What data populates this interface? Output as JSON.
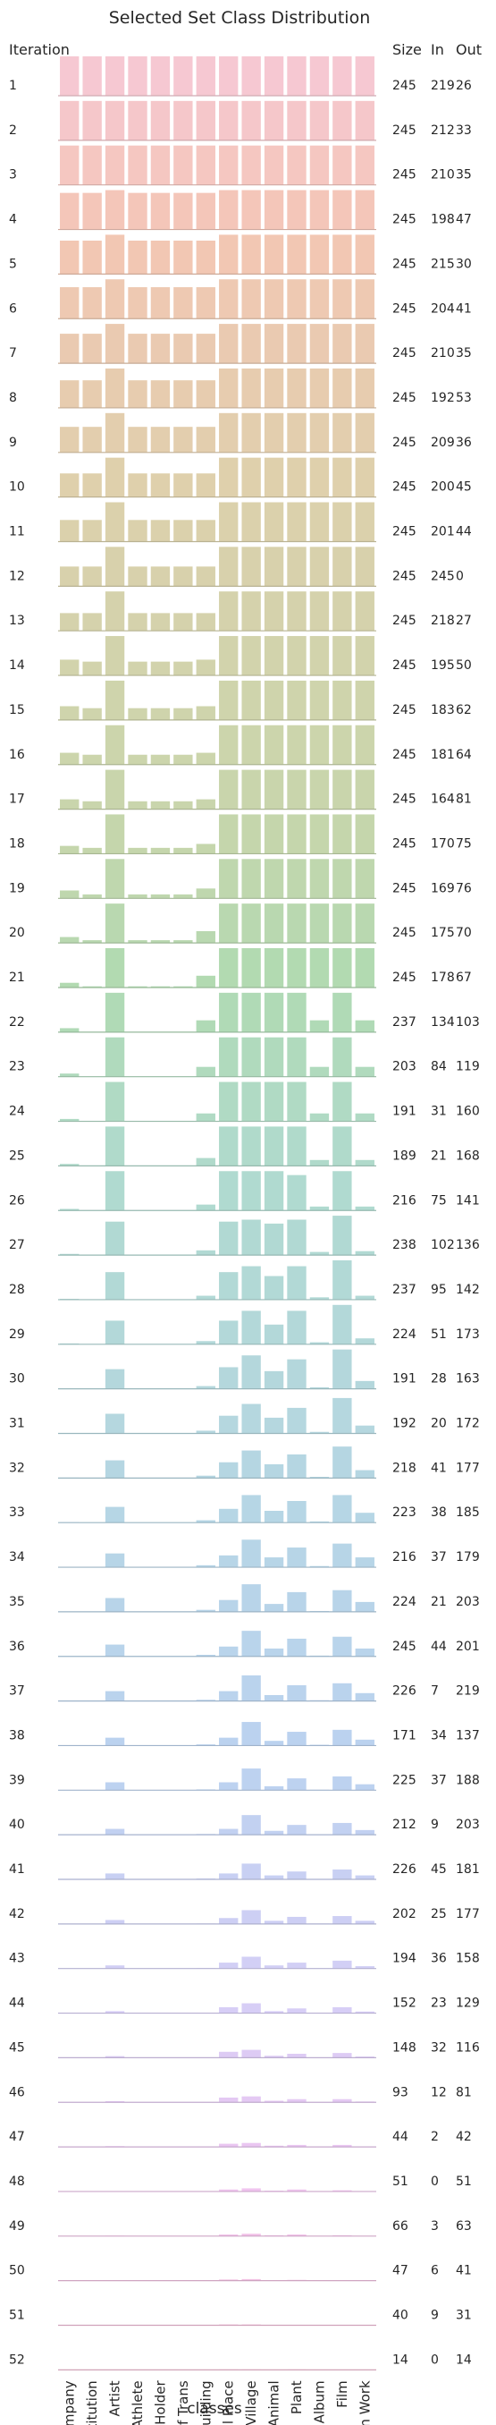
{
  "chart_data": {
    "type": "bar",
    "title": "Selected Set Class Distribution",
    "row_header": "Iteration",
    "xlabel": "classes",
    "stat_headers": [
      "Size",
      "In",
      "Out"
    ],
    "categories": [
      "Company",
      "Edu Institution",
      "Artist",
      "Athlete",
      "Office Holder",
      "Mean Of Trans",
      "Building",
      "Natural Place",
      "Village",
      "Animal",
      "Plant",
      "Album",
      "Film",
      "Written Work"
    ],
    "iterations": [
      {
        "iteration": 1,
        "size": 245,
        "in": 219,
        "out": 26,
        "values": [
          1,
          1,
          1,
          1,
          1,
          1,
          1,
          1,
          1,
          1,
          1,
          1,
          1,
          1
        ]
      },
      {
        "iteration": 2,
        "size": 245,
        "in": 212,
        "out": 33,
        "values": [
          1,
          1,
          1,
          1,
          1,
          1,
          1,
          1,
          1,
          1,
          1,
          1,
          1,
          1
        ]
      },
      {
        "iteration": 3,
        "size": 245,
        "in": 210,
        "out": 35,
        "values": [
          1,
          1,
          1,
          1,
          1,
          1,
          1,
          1,
          1,
          1,
          1,
          1,
          1,
          1
        ]
      },
      {
        "iteration": 4,
        "size": 245,
        "in": 198,
        "out": 47,
        "values": [
          0.93,
          0.93,
          1,
          0.93,
          0.93,
          0.93,
          0.93,
          1,
          1,
          1,
          1,
          1,
          1,
          1
        ]
      },
      {
        "iteration": 5,
        "size": 245,
        "in": 215,
        "out": 30,
        "values": [
          0.85,
          0.85,
          1,
          0.85,
          0.85,
          0.85,
          0.85,
          1,
          1,
          1,
          1,
          1,
          1,
          1
        ]
      },
      {
        "iteration": 6,
        "size": 245,
        "in": 204,
        "out": 41,
        "values": [
          0.8,
          0.8,
          1,
          0.8,
          0.8,
          0.8,
          0.8,
          1,
          1,
          1,
          1,
          1,
          1,
          1
        ]
      },
      {
        "iteration": 7,
        "size": 245,
        "in": 210,
        "out": 35,
        "values": [
          0.75,
          0.75,
          1,
          0.75,
          0.75,
          0.75,
          0.75,
          1,
          1,
          1,
          1,
          1,
          1,
          1
        ]
      },
      {
        "iteration": 8,
        "size": 245,
        "in": 192,
        "out": 53,
        "values": [
          0.7,
          0.7,
          1,
          0.7,
          0.7,
          0.7,
          0.7,
          1,
          1,
          1,
          1,
          1,
          1,
          1
        ]
      },
      {
        "iteration": 9,
        "size": 245,
        "in": 209,
        "out": 36,
        "values": [
          0.65,
          0.65,
          1,
          0.65,
          0.65,
          0.65,
          0.65,
          1,
          1,
          1,
          1,
          1,
          1,
          1
        ]
      },
      {
        "iteration": 10,
        "size": 245,
        "in": 200,
        "out": 45,
        "values": [
          0.6,
          0.6,
          1,
          0.6,
          0.6,
          0.6,
          0.6,
          1,
          1,
          1,
          1,
          1,
          1,
          1
        ]
      },
      {
        "iteration": 11,
        "size": 245,
        "in": 201,
        "out": 44,
        "values": [
          0.55,
          0.55,
          1,
          0.55,
          0.55,
          0.55,
          0.55,
          1,
          1,
          1,
          1,
          1,
          1,
          1
        ]
      },
      {
        "iteration": 12,
        "size": 245,
        "in": 245,
        "out": 0,
        "values": [
          0.5,
          0.5,
          1,
          0.5,
          0.5,
          0.5,
          0.5,
          1,
          1,
          1,
          1,
          1,
          1,
          1
        ]
      },
      {
        "iteration": 13,
        "size": 245,
        "in": 218,
        "out": 27,
        "values": [
          0.45,
          0.45,
          1,
          0.45,
          0.45,
          0.45,
          0.45,
          1,
          1,
          1,
          1,
          1,
          1,
          1
        ]
      },
      {
        "iteration": 14,
        "size": 245,
        "in": 195,
        "out": 50,
        "values": [
          0.4,
          0.35,
          1,
          0.35,
          0.35,
          0.35,
          0.4,
          1,
          1,
          1,
          1,
          1,
          1,
          1
        ]
      },
      {
        "iteration": 15,
        "size": 245,
        "in": 183,
        "out": 62,
        "values": [
          0.35,
          0.3,
          1,
          0.3,
          0.3,
          0.3,
          0.35,
          1,
          1,
          1,
          1,
          1,
          1,
          1
        ]
      },
      {
        "iteration": 16,
        "size": 245,
        "in": 181,
        "out": 64,
        "values": [
          0.3,
          0.25,
          1,
          0.25,
          0.25,
          0.25,
          0.3,
          1,
          1,
          1,
          1,
          1,
          1,
          1
        ]
      },
      {
        "iteration": 17,
        "size": 245,
        "in": 164,
        "out": 81,
        "values": [
          0.25,
          0.2,
          1,
          0.2,
          0.2,
          0.2,
          0.25,
          1,
          1,
          1,
          1,
          1,
          1,
          1
        ]
      },
      {
        "iteration": 18,
        "size": 245,
        "in": 170,
        "out": 75,
        "values": [
          0.2,
          0.15,
          1,
          0.15,
          0.15,
          0.15,
          0.25,
          1,
          1,
          1,
          1,
          1,
          1,
          1
        ]
      },
      {
        "iteration": 19,
        "size": 245,
        "in": 169,
        "out": 76,
        "values": [
          0.2,
          0.1,
          1,
          0.1,
          0.1,
          0.1,
          0.25,
          1,
          1,
          1,
          1,
          1,
          1,
          1
        ]
      },
      {
        "iteration": 20,
        "size": 245,
        "in": 175,
        "out": 70,
        "values": [
          0.15,
          0.07,
          1,
          0.07,
          0.07,
          0.07,
          0.3,
          1,
          1,
          1,
          1,
          1,
          1,
          1
        ]
      },
      {
        "iteration": 21,
        "size": 245,
        "in": 178,
        "out": 67,
        "values": [
          0.12,
          0.03,
          1,
          0.03,
          0.03,
          0.03,
          0.3,
          1,
          1,
          1,
          1,
          1,
          1,
          1
        ]
      },
      {
        "iteration": 22,
        "size": 237,
        "in": 134,
        "out": 103,
        "values": [
          0.1,
          0,
          1,
          0,
          0,
          0,
          0.3,
          1,
          1,
          1,
          1,
          0.3,
          1,
          0.3
        ]
      },
      {
        "iteration": 23,
        "size": 203,
        "in": 84,
        "out": 119,
        "values": [
          0.08,
          0,
          1,
          0,
          0,
          0,
          0.25,
          1,
          1,
          1,
          1,
          0.25,
          1,
          0.25
        ]
      },
      {
        "iteration": 24,
        "size": 191,
        "in": 31,
        "out": 160,
        "values": [
          0.06,
          0,
          1,
          0,
          0,
          0,
          0.2,
          1,
          1,
          1,
          1,
          0.2,
          1,
          0.2
        ]
      },
      {
        "iteration": 25,
        "size": 189,
        "in": 21,
        "out": 168,
        "values": [
          0.05,
          0,
          1,
          0,
          0,
          0,
          0.2,
          1,
          1,
          1,
          1,
          0.15,
          1,
          0.15
        ]
      },
      {
        "iteration": 26,
        "size": 216,
        "in": 75,
        "out": 141,
        "values": [
          0.04,
          0,
          1,
          0,
          0,
          0,
          0.15,
          1,
          1,
          1,
          0.9,
          0.1,
          1,
          0.1
        ]
      },
      {
        "iteration": 27,
        "size": 238,
        "in": 102,
        "out": 136,
        "values": [
          0.03,
          0,
          0.85,
          0,
          0,
          0,
          0.12,
          0.85,
          0.9,
          0.8,
          0.9,
          0.08,
          1,
          0.1
        ]
      },
      {
        "iteration": 28,
        "size": 237,
        "in": 95,
        "out": 142,
        "values": [
          0.02,
          0,
          0.7,
          0,
          0,
          0,
          0.1,
          0.7,
          0.85,
          0.6,
          0.85,
          0.06,
          1,
          0.1
        ]
      },
      {
        "iteration": 29,
        "size": 224,
        "in": 51,
        "out": 173,
        "values": [
          0.02,
          0,
          0.6,
          0,
          0,
          0,
          0.08,
          0.6,
          0.85,
          0.5,
          0.85,
          0.05,
          1,
          0.15
        ]
      },
      {
        "iteration": 30,
        "size": 191,
        "in": 28,
        "out": 163,
        "values": [
          0.01,
          0,
          0.5,
          0,
          0,
          0,
          0.07,
          0.55,
          0.85,
          0.45,
          0.75,
          0.04,
          1,
          0.2
        ]
      },
      {
        "iteration": 31,
        "size": 192,
        "in": 20,
        "out": 172,
        "values": [
          0.01,
          0,
          0.5,
          0,
          0,
          0,
          0.07,
          0.45,
          0.75,
          0.4,
          0.65,
          0.04,
          0.9,
          0.2
        ]
      },
      {
        "iteration": 32,
        "size": 218,
        "in": 41,
        "out": 177,
        "values": [
          0.01,
          0,
          0.45,
          0,
          0,
          0,
          0.06,
          0.4,
          0.7,
          0.35,
          0.6,
          0.03,
          0.8,
          0.2
        ]
      },
      {
        "iteration": 33,
        "size": 223,
        "in": 38,
        "out": 185,
        "values": [
          0.01,
          0,
          0.4,
          0,
          0,
          0,
          0.06,
          0.35,
          0.7,
          0.3,
          0.55,
          0.03,
          0.7,
          0.25
        ]
      },
      {
        "iteration": 34,
        "size": 216,
        "in": 37,
        "out": 179,
        "values": [
          0.01,
          0,
          0.35,
          0,
          0,
          0,
          0.05,
          0.3,
          0.7,
          0.25,
          0.5,
          0.03,
          0.6,
          0.25
        ]
      },
      {
        "iteration": 35,
        "size": 224,
        "in": 21,
        "out": 203,
        "values": [
          0,
          0,
          0.35,
          0,
          0,
          0,
          0.05,
          0.3,
          0.7,
          0.2,
          0.5,
          0.02,
          0.55,
          0.25
        ]
      },
      {
        "iteration": 36,
        "size": 245,
        "in": 44,
        "out": 201,
        "values": [
          0,
          0,
          0.3,
          0,
          0,
          0,
          0.04,
          0.25,
          0.65,
          0.2,
          0.45,
          0.02,
          0.5,
          0.2
        ]
      },
      {
        "iteration": 37,
        "size": 226,
        "in": 7,
        "out": 219,
        "values": [
          0,
          0,
          0.25,
          0,
          0,
          0,
          0.03,
          0.25,
          0.65,
          0.15,
          0.4,
          0.02,
          0.45,
          0.2
        ]
      },
      {
        "iteration": 38,
        "size": 171,
        "in": 34,
        "out": 137,
        "values": [
          0,
          0,
          0.2,
          0,
          0,
          0,
          0.03,
          0.2,
          0.6,
          0.12,
          0.35,
          0.02,
          0.4,
          0.15
        ]
      },
      {
        "iteration": 39,
        "size": 225,
        "in": 37,
        "out": 188,
        "values": [
          0,
          0,
          0.2,
          0,
          0,
          0,
          0.02,
          0.2,
          0.55,
          0.1,
          0.3,
          0.01,
          0.35,
          0.15
        ]
      },
      {
        "iteration": 40,
        "size": 212,
        "in": 9,
        "out": 203,
        "values": [
          0,
          0,
          0.15,
          0,
          0,
          0,
          0.02,
          0.15,
          0.5,
          0.1,
          0.25,
          0.01,
          0.3,
          0.12
        ]
      },
      {
        "iteration": 41,
        "size": 226,
        "in": 45,
        "out": 181,
        "values": [
          0,
          0,
          0.15,
          0,
          0,
          0,
          0.02,
          0.15,
          0.4,
          0.1,
          0.2,
          0.01,
          0.25,
          0.1
        ]
      },
      {
        "iteration": 42,
        "size": 202,
        "in": 25,
        "out": 177,
        "values": [
          0,
          0,
          0.1,
          0,
          0,
          0,
          0.01,
          0.15,
          0.35,
          0.08,
          0.18,
          0.01,
          0.2,
          0.08
        ]
      },
      {
        "iteration": 43,
        "size": 194,
        "in": 36,
        "out": 158,
        "values": [
          0,
          0,
          0.08,
          0,
          0,
          0,
          0.01,
          0.15,
          0.3,
          0.08,
          0.15,
          0,
          0.2,
          0.06
        ]
      },
      {
        "iteration": 44,
        "size": 152,
        "in": 23,
        "out": 129,
        "values": [
          0,
          0,
          0.05,
          0,
          0,
          0,
          0.01,
          0.15,
          0.25,
          0.05,
          0.12,
          0,
          0.15,
          0.04
        ]
      },
      {
        "iteration": 45,
        "size": 148,
        "in": 32,
        "out": 116,
        "values": [
          0,
          0,
          0.04,
          0,
          0,
          0,
          0,
          0.15,
          0.2,
          0.05,
          0.1,
          0,
          0.12,
          0.03
        ]
      },
      {
        "iteration": 46,
        "size": 93,
        "in": 12,
        "out": 81,
        "values": [
          0,
          0,
          0.03,
          0,
          0,
          0,
          0,
          0.12,
          0.15,
          0.04,
          0.08,
          0,
          0.08,
          0.02
        ]
      },
      {
        "iteration": 47,
        "size": 44,
        "in": 2,
        "out": 42,
        "values": [
          0,
          0,
          0.02,
          0,
          0,
          0,
          0,
          0.08,
          0.1,
          0.03,
          0.05,
          0,
          0.05,
          0.01
        ]
      },
      {
        "iteration": 48,
        "size": 51,
        "in": 0,
        "out": 51,
        "values": [
          0,
          0,
          0.01,
          0,
          0,
          0,
          0,
          0.05,
          0.08,
          0.02,
          0.05,
          0,
          0.03,
          0.01
        ]
      },
      {
        "iteration": 49,
        "size": 66,
        "in": 3,
        "out": 63,
        "values": [
          0,
          0,
          0.01,
          0,
          0,
          0,
          0,
          0.04,
          0.06,
          0.02,
          0.04,
          0,
          0.02,
          0
        ]
      },
      {
        "iteration": 50,
        "size": 47,
        "in": 6,
        "out": 41,
        "values": [
          0,
          0,
          0,
          0,
          0,
          0,
          0,
          0.03,
          0.04,
          0.01,
          0.02,
          0,
          0.01,
          0
        ]
      },
      {
        "iteration": 51,
        "size": 40,
        "in": 9,
        "out": 31,
        "values": [
          0,
          0,
          0,
          0,
          0,
          0,
          0,
          0.02,
          0.02,
          0.01,
          0.01,
          0,
          0.01,
          0
        ]
      },
      {
        "iteration": 52,
        "size": 14,
        "in": 0,
        "out": 14,
        "values": [
          0,
          0,
          0,
          0,
          0,
          0,
          0,
          0.01,
          0.01,
          0,
          0.01,
          0,
          0,
          0
        ]
      }
    ],
    "ylim": [
      0,
      1
    ],
    "grid": false,
    "legend": "none"
  }
}
